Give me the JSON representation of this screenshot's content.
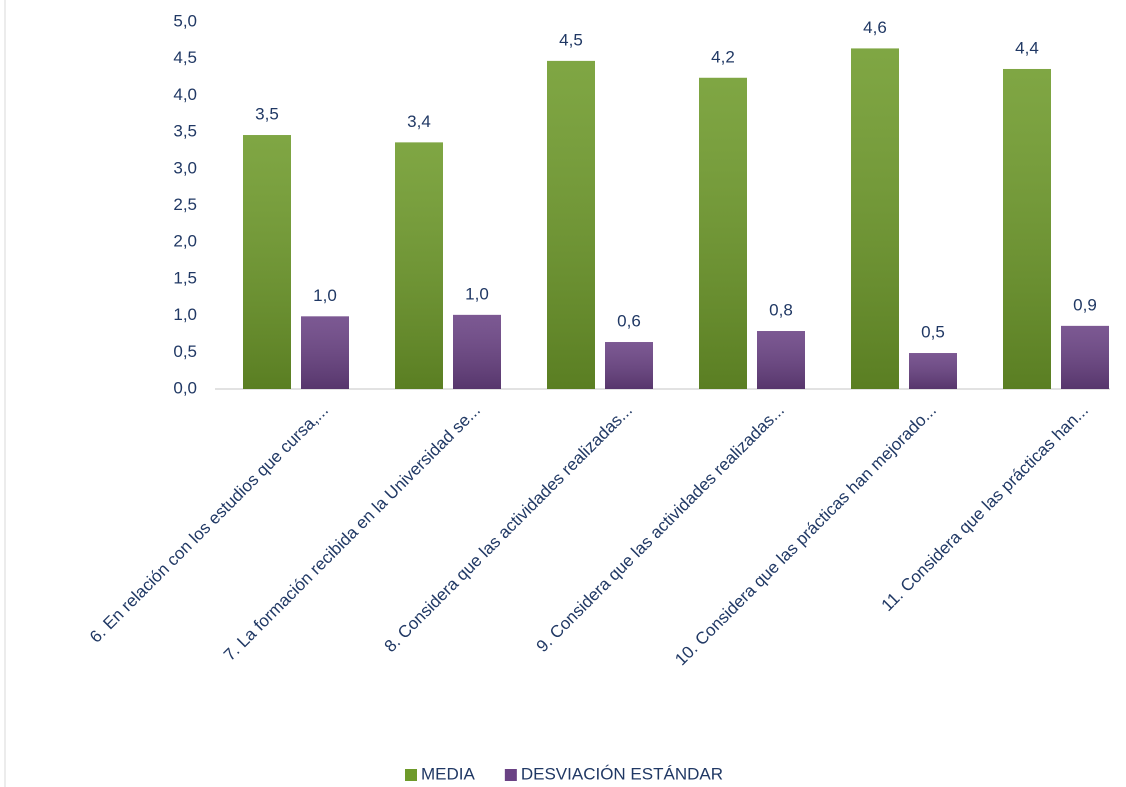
{
  "chart_data": {
    "type": "bar",
    "categories": [
      "6. En relación con los estudios que cursa,...",
      "7. La formación recibida en la Universidad se...",
      "8. Considera que las actividades realizadas...",
      "9. Considera que las actividades realizadas...",
      "10. Considera que las prácticas han mejorado...",
      "11. Considera que las prácticas han..."
    ],
    "series": [
      {
        "name": "MEDIA",
        "color": "#6e9a2a",
        "values": [
          3.46,
          3.36,
          4.47,
          4.24,
          4.64,
          4.36
        ],
        "value_labels": [
          "3,5",
          "3,4",
          "4,5",
          "4,2",
          "4,6",
          "4,4"
        ]
      },
      {
        "name": "DESVIACIÓN ESTÁNDAR",
        "color": "#6a4284",
        "values": [
          0.99,
          1.01,
          0.64,
          0.79,
          0.49,
          0.86
        ],
        "value_labels": [
          "1,0",
          "1,0",
          "0,6",
          "0,8",
          "0,5",
          "0,9"
        ]
      }
    ],
    "ylim": [
      0,
      5
    ],
    "yticks": [
      {
        "value": 0,
        "label": "0,0"
      },
      {
        "value": 0.5,
        "label": "0,5"
      },
      {
        "value": 1,
        "label": "1,0"
      },
      {
        "value": 1.5,
        "label": "1,5"
      },
      {
        "value": 2,
        "label": "2,0"
      },
      {
        "value": 2.5,
        "label": "2,5"
      },
      {
        "value": 3,
        "label": "3,0"
      },
      {
        "value": 3.5,
        "label": "3,5"
      },
      {
        "value": 4,
        "label": "4,0"
      },
      {
        "value": 4.5,
        "label": "4,5"
      },
      {
        "value": 5,
        "label": "5,0"
      }
    ],
    "grid": false,
    "legend": "bottom"
  }
}
